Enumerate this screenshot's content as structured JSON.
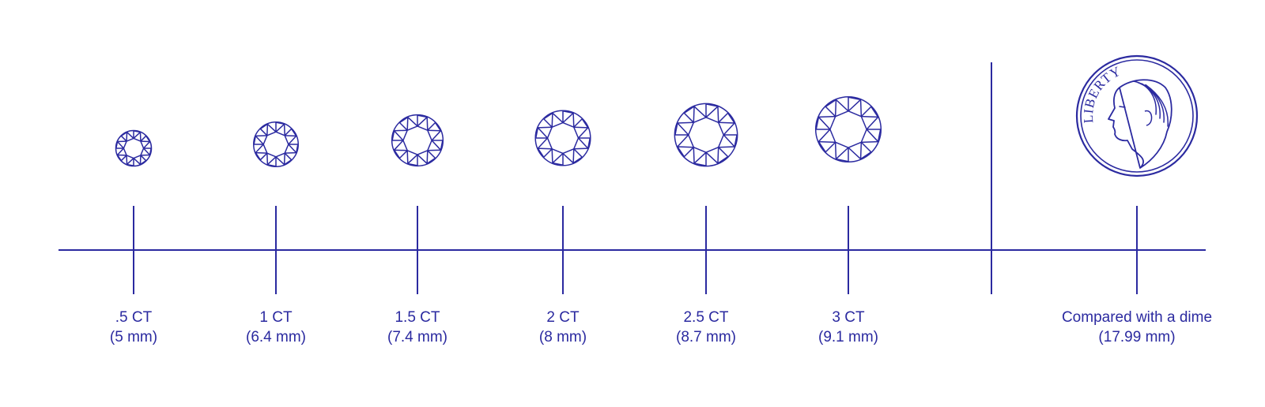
{
  "colors": {
    "ink": "#2b2aa0",
    "background": "#ffffff"
  },
  "coin": {
    "inscription": "LIBERTY",
    "icon": "dime-coin-icon"
  },
  "stones": [
    {
      "carat": ".5 CT",
      "size": "(5 mm)",
      "mm": 5,
      "icon": "round-diamond-icon"
    },
    {
      "carat": "1 CT",
      "size": "(6.4 mm)",
      "mm": 6.4,
      "icon": "round-diamond-icon"
    },
    {
      "carat": "1.5 CT",
      "size": "(7.4 mm)",
      "mm": 7.4,
      "icon": "round-diamond-icon"
    },
    {
      "carat": "2 CT",
      "size": "(8 mm)",
      "mm": 8,
      "icon": "round-diamond-icon"
    },
    {
      "carat": "2.5 CT",
      "size": "(8.7 mm)",
      "mm": 8.7,
      "icon": "round-diamond-icon"
    },
    {
      "carat": "3 CT",
      "size": "(9.1 mm)",
      "mm": 9.1,
      "icon": "round-diamond-icon"
    }
  ],
  "comparison": {
    "title": "Compared with a dime",
    "size": "(17.99 mm)",
    "mm": 17.99
  }
}
